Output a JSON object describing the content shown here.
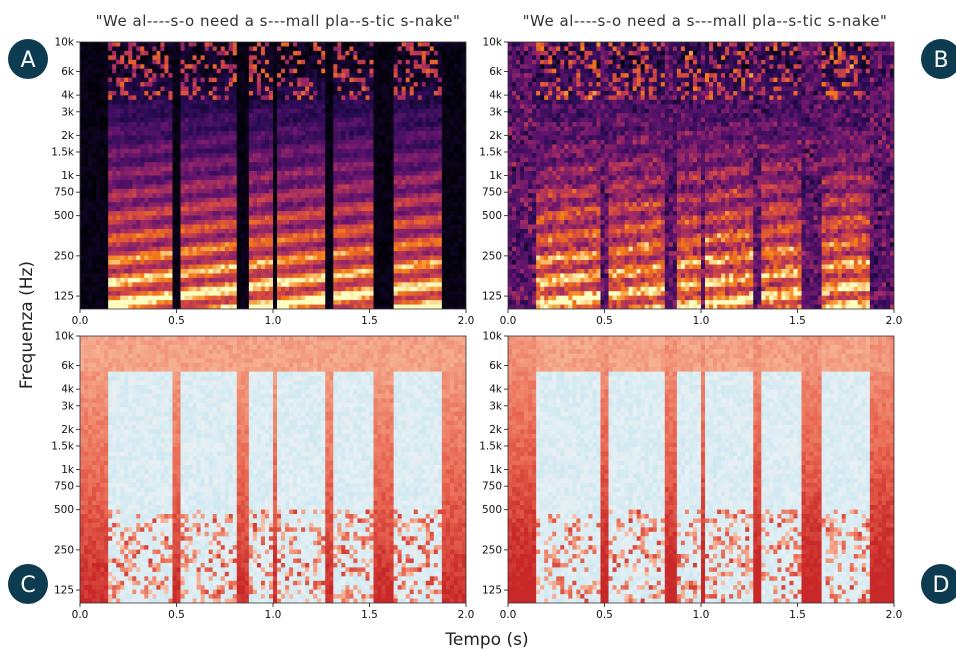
{
  "figure": {
    "xlabel": "Tempo (s)",
    "ylabel": "Frequenza (Hz)"
  },
  "chart_data": [
    {
      "panel": "A",
      "type": "heatmap",
      "colormap": "magma",
      "title": "\"We al----s-o need a s---mall pla--s-tic s-nake\"",
      "xlim": [
        0.0,
        2.0
      ],
      "xticks": [
        "0.0",
        "0.5",
        "1.0",
        "1.5",
        "2.0"
      ],
      "yscale": "log",
      "yticks": [
        "125",
        "250",
        "500",
        "750",
        "1k",
        "1.5k",
        "2k",
        "3k",
        "4k",
        "6k",
        "10k"
      ],
      "speech_segments": [
        [
          0.15,
          0.47
        ],
        [
          0.52,
          0.82
        ],
        [
          0.88,
          1.0
        ],
        [
          1.03,
          1.27
        ],
        [
          1.31,
          1.52
        ],
        [
          1.62,
          1.88
        ]
      ],
      "noise": "clean"
    },
    {
      "panel": "B",
      "type": "heatmap",
      "colormap": "magma",
      "title": "\"We al----s-o need a s---mall pla--s-tic s-nake\"",
      "xlim": [
        0.0,
        2.0
      ],
      "xticks": [
        "0.0",
        "0.5",
        "1.0",
        "1.5",
        "2.0"
      ],
      "yscale": "log",
      "yticks": [
        "125",
        "250",
        "500",
        "750",
        "1k",
        "1.5k",
        "2k",
        "3k",
        "4k",
        "6k",
        "10k"
      ],
      "speech_segments": [
        [
          0.15,
          0.47
        ],
        [
          0.52,
          0.82
        ],
        [
          0.88,
          1.0
        ],
        [
          1.03,
          1.27
        ],
        [
          1.31,
          1.52
        ],
        [
          1.62,
          1.88
        ]
      ],
      "noise": "noisy"
    },
    {
      "panel": "C",
      "type": "heatmap",
      "colormap": "coolwarm",
      "xlim": [
        0.0,
        2.0
      ],
      "xticks": [
        "0.0",
        "0.5",
        "1.0",
        "1.5",
        "2.0"
      ],
      "yscale": "log",
      "yticks": [
        "125",
        "250",
        "500",
        "750",
        "1k",
        "1.5k",
        "2k",
        "3k",
        "4k",
        "6k",
        "10k"
      ],
      "speech_segments": [
        [
          0.15,
          0.47
        ],
        [
          0.52,
          0.82
        ],
        [
          0.88,
          1.0
        ],
        [
          1.03,
          1.27
        ],
        [
          1.31,
          1.52
        ],
        [
          1.62,
          1.88
        ]
      ],
      "noise": "clean"
    },
    {
      "panel": "D",
      "type": "heatmap",
      "colormap": "coolwarm",
      "xlim": [
        0.0,
        2.0
      ],
      "xticks": [
        "0.0",
        "0.5",
        "1.0",
        "1.5",
        "2.0"
      ],
      "yscale": "log",
      "yticks": [
        "125",
        "250",
        "500",
        "750",
        "1k",
        "1.5k",
        "2k",
        "3k",
        "4k",
        "6k",
        "10k"
      ],
      "speech_segments": [
        [
          0.15,
          0.47
        ],
        [
          0.52,
          0.82
        ],
        [
          0.88,
          1.0
        ],
        [
          1.03,
          1.27
        ],
        [
          1.31,
          1.52
        ],
        [
          1.62,
          1.88
        ]
      ],
      "noise": "noisy"
    }
  ],
  "colors": {
    "badge": "#0d3b4f",
    "magma_low": "#000004",
    "magma_mid": "#b5367a",
    "magma_high": "#fcfdbf",
    "coolwarm_low": "#c7e6f0",
    "coolwarm_high": "#d8352a"
  }
}
